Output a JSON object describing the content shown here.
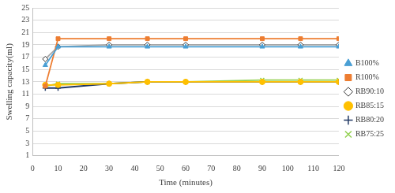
{
  "chart_data": {
    "type": "line",
    "x_label": "Time (minutes)",
    "y_label": "Swelling capacity(ml)",
    "x": [
      5,
      10,
      30,
      45,
      60,
      90,
      105,
      120
    ],
    "xlim": [
      0,
      120
    ],
    "xticks": [
      0,
      10,
      20,
      30,
      40,
      50,
      60,
      70,
      80,
      90,
      100,
      110,
      120
    ],
    "ylim": [
      1,
      25
    ],
    "yticks": [
      1,
      3,
      5,
      7,
      9,
      11,
      13,
      15,
      17,
      19,
      21,
      23,
      25
    ],
    "grid": "y",
    "legend": "right",
    "series": [
      {
        "name": "B100%",
        "color": "#4a9fd4",
        "marker": "triangle",
        "values": [
          15.7,
          18.7,
          18.7,
          18.7,
          18.7,
          18.7,
          18.7,
          18.7
        ]
      },
      {
        "name": "R100%",
        "color": "#ed7d31",
        "marker": "square",
        "values": [
          12.3,
          20,
          20,
          20,
          20,
          20,
          20,
          20
        ]
      },
      {
        "name": "RB90:10",
        "color": "#a6a6a6",
        "marker": "diamond",
        "values": [
          16.7,
          18.7,
          19,
          19,
          19,
          19,
          19,
          19
        ]
      },
      {
        "name": "RB85:15",
        "color": "#ffc000",
        "marker": "circle",
        "values": [
          12.5,
          12.5,
          12.7,
          13,
          13,
          13,
          13,
          13
        ]
      },
      {
        "name": "RB80:20",
        "color": "#203864",
        "marker": "plus",
        "values": [
          12,
          12,
          12.7,
          13,
          13,
          13,
          13,
          13
        ]
      },
      {
        "name": "RB75:25",
        "color": "#92d050",
        "marker": "x",
        "values": [
          12.3,
          12.7,
          12.7,
          13,
          13,
          13.3,
          13.3,
          13.3
        ]
      }
    ]
  }
}
